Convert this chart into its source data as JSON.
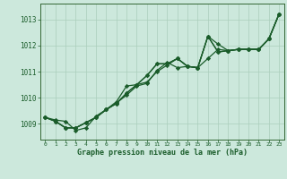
{
  "title": "Graphe pression niveau de la mer (hPa)",
  "background_color": "#cce8dc",
  "grid_color": "#aacebb",
  "line_color": "#1a5c2a",
  "border_color": "#336633",
  "xlim": [
    -0.5,
    23.5
  ],
  "ylim": [
    1008.4,
    1013.6
  ],
  "yticks": [
    1009,
    1010,
    1011,
    1012,
    1013
  ],
  "xticks": [
    0,
    1,
    2,
    3,
    4,
    5,
    6,
    7,
    8,
    9,
    10,
    11,
    12,
    13,
    14,
    15,
    16,
    17,
    18,
    19,
    20,
    21,
    22,
    23
  ],
  "series": [
    {
      "x": [
        0,
        1,
        2,
        3,
        4,
        5,
        6,
        7,
        8,
        9,
        10,
        11,
        12,
        13,
        14,
        15,
        16,
        17,
        18,
        19,
        20,
        21,
        22,
        23
      ],
      "y": [
        1009.25,
        1009.15,
        1009.1,
        1008.75,
        1008.85,
        1009.3,
        1009.55,
        1009.8,
        1010.1,
        1010.45,
        1010.55,
        1011.05,
        1011.35,
        1011.15,
        1011.2,
        1011.15,
        1011.5,
        1011.85,
        1011.8,
        1011.85,
        1011.85,
        1011.85,
        1012.25,
        1013.2
      ],
      "marker": "D",
      "markersize": 2.2,
      "linewidth": 0.9
    },
    {
      "x": [
        0,
        1,
        2,
        3,
        4,
        5,
        6,
        7,
        8,
        9,
        10,
        11,
        12,
        13,
        14,
        15,
        16,
        17,
        18,
        19,
        20,
        21,
        22,
        23
      ],
      "y": [
        1009.25,
        1009.1,
        1008.85,
        1008.85,
        1009.05,
        1009.25,
        1009.55,
        1009.78,
        1010.18,
        1010.5,
        1010.6,
        1011.0,
        1011.25,
        1011.5,
        1011.2,
        1011.15,
        1012.35,
        1011.75,
        1011.8,
        1011.85,
        1011.85,
        1011.85,
        1012.25,
        1013.2
      ],
      "marker": "D",
      "markersize": 2.2,
      "linewidth": 0.9
    },
    {
      "x": [
        0,
        1,
        2,
        3,
        4,
        5,
        6,
        7,
        8,
        9,
        10,
        11,
        12,
        13,
        14,
        15,
        16,
        17,
        18,
        19,
        20,
        21,
        22,
        23
      ],
      "y": [
        1009.25,
        1009.1,
        1008.85,
        1008.85,
        1009.05,
        1009.25,
        1009.55,
        1009.78,
        1010.18,
        1010.5,
        1010.85,
        1011.3,
        1011.3,
        1011.5,
        1011.2,
        1011.15,
        1012.35,
        1011.75,
        1011.8,
        1011.85,
        1011.85,
        1011.85,
        1012.25,
        1013.2
      ],
      "marker": "D",
      "markersize": 2.2,
      "linewidth": 0.9
    },
    {
      "x": [
        0,
        1,
        2,
        3,
        4,
        5,
        6,
        7,
        8,
        9,
        10,
        11,
        12,
        13,
        14,
        15,
        16,
        17,
        18,
        19,
        20,
        21,
        22,
        23
      ],
      "y": [
        1009.25,
        1009.1,
        1008.85,
        1008.85,
        1009.05,
        1009.25,
        1009.55,
        1009.85,
        1010.45,
        1010.5,
        1010.85,
        1011.3,
        1011.3,
        1011.5,
        1011.2,
        1011.15,
        1012.35,
        1012.05,
        1011.8,
        1011.85,
        1011.85,
        1011.85,
        1012.25,
        1013.2
      ],
      "marker": "D",
      "markersize": 2.2,
      "linewidth": 0.9
    }
  ]
}
